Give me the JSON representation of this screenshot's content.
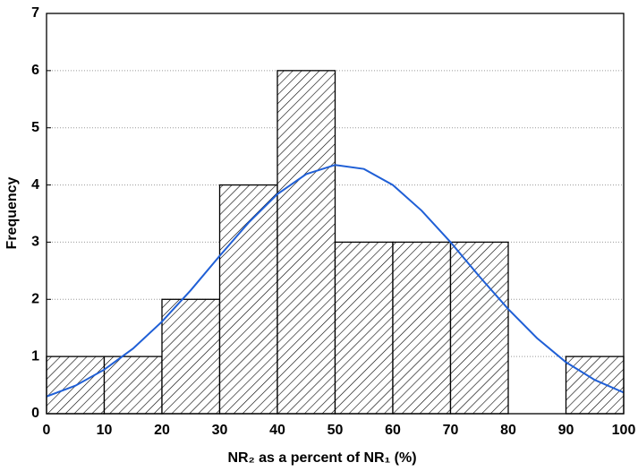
{
  "chart_data": {
    "type": "histogram",
    "x_label": "NR₂ as a percent of NR₁ (%)",
    "y_label": "Frequency",
    "bins": [
      0,
      10,
      20,
      30,
      40,
      50,
      60,
      70,
      80,
      90,
      100
    ],
    "values": [
      1,
      1,
      2,
      4,
      6,
      3,
      3,
      3,
      0,
      1
    ],
    "color": "#000000",
    "curve": {
      "color": "#1f5fd6",
      "x": [
        0,
        5,
        10,
        15,
        20,
        25,
        30,
        35,
        40,
        45,
        50,
        55,
        60,
        65,
        70,
        75,
        80,
        85,
        90,
        95,
        100
      ],
      "values": [
        0.3,
        0.49,
        0.77,
        1.14,
        1.61,
        2.16,
        2.76,
        3.34,
        3.84,
        4.19,
        4.35,
        4.28,
        4.0,
        3.55,
        3.0,
        2.4,
        1.83,
        1.32,
        0.9,
        0.59,
        0.37
      ]
    },
    "xlim": [
      0,
      100
    ],
    "xticks": [
      0,
      10,
      20,
      30,
      40,
      50,
      60,
      70,
      80,
      90,
      100
    ],
    "ylim": [
      0,
      7
    ],
    "yticks": [
      0,
      1,
      2,
      3,
      4,
      5,
      6,
      7
    ],
    "grid": true
  }
}
